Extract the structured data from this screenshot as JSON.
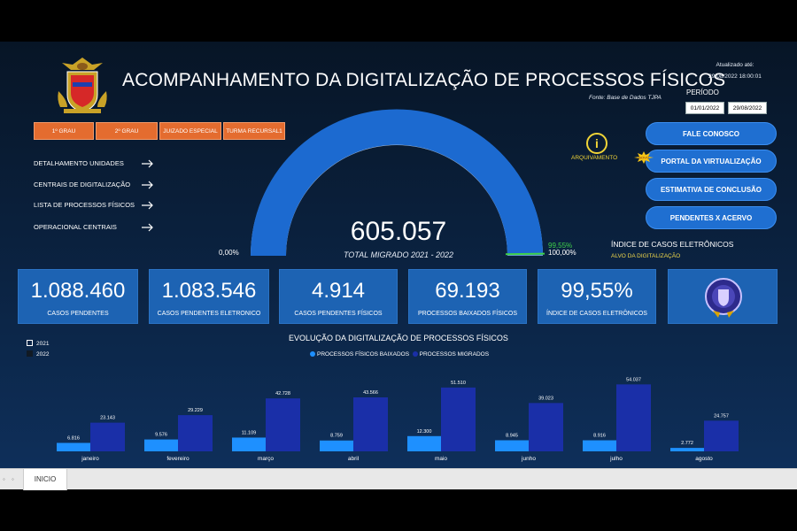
{
  "header": {
    "title": "ACOMPANHAMENTO DA DIGITALIZAÇÃO DE PROCESSOS FÍSICOS",
    "source": "Fonte: Base de Dados TJPA",
    "updated_label": "Atualizado até:",
    "updated_value": "29/08/2022 18:00:01",
    "period_label": "PERÍODO",
    "date_start": "01/01/2022",
    "date_end": "29/08/2022"
  },
  "tabs": [
    "1º GRAU",
    "2º GRAU",
    "JUIZADO ESPECIAL",
    "TURMA RECURSAL1"
  ],
  "nav_items": [
    "DETALHAMENTO UNIDADES",
    "CENTRAIS DE DIGITALIZAÇÃO",
    "LISTA DE PROCESSOS FÍSICOS",
    "OPERACIONAL CENTRAIS"
  ],
  "gauge": {
    "value": "605.057",
    "subtitle": "TOTAL MIGRADO 2021 - 2022",
    "min_label": "0,00%",
    "max_label": "100,00%",
    "target_label": "99,55%",
    "fill_fraction": 1.0,
    "target_fraction": 0.9955,
    "index_title": "ÍNDICE DE CASOS ELETRÔNICOS",
    "index_sub": "ALVO  DA DIGITALIZAÇÃO"
  },
  "actions": {
    "archive_label": "ARQUIVAMENTO",
    "new_badge": "NOVO",
    "buttons": [
      "FALE CONOSCO",
      "PORTAL DA VIRTUALIZAÇÃO",
      "ESTIMATIVA DE CONCLUSÃO",
      "PENDENTES X ACERVO"
    ]
  },
  "kpis": [
    {
      "value": "1.088.460",
      "label": "CASOS PENDENTES"
    },
    {
      "value": "1.083.546",
      "label": "CASOS PENDENTES ELETRONICO"
    },
    {
      "value": "4.914",
      "label": "CASOS PENDENTES FÍSICOS"
    },
    {
      "value": "69.193",
      "label": "PROCESSOS BAIXADOS FÍSICOS"
    },
    {
      "value": "99,55%",
      "label": "ÍNDICE DE CASOS ELETRÔNICOS"
    }
  ],
  "year_filter": [
    "2021",
    "2022"
  ],
  "chart_data": {
    "type": "bar",
    "title": "EVOLUÇÃO DA DIGITALIZAÇÃO DE PROCESSOS FÍSICOS",
    "categories": [
      "janeiro",
      "fevereiro",
      "março",
      "abril",
      "maio",
      "junho",
      "julho",
      "agosto"
    ],
    "series": [
      {
        "name": "PROCESSOS FÍSICOS BAIXADOS",
        "color": "#1e90ff",
        "values": [
          6816,
          9576,
          11109,
          8759,
          12300,
          8945,
          8916,
          2772
        ],
        "labels": [
          "6.816",
          "9.576",
          "11.109",
          "8.759",
          "12.300",
          "8.945",
          "8.916",
          "2.772"
        ]
      },
      {
        "name": "PROCESSOS MIGRADOS",
        "color": "#1a2fa8",
        "values": [
          23143,
          29229,
          42728,
          43566,
          51510,
          39023,
          54037,
          24757
        ],
        "labels": [
          "23.143",
          "29.229",
          "42.728",
          "43.566",
          "51.510",
          "39.023",
          "54.037",
          "24.757"
        ]
      }
    ],
    "ylim": [
      0,
      60000
    ]
  },
  "footer": {
    "page_tab": "INICIO"
  }
}
